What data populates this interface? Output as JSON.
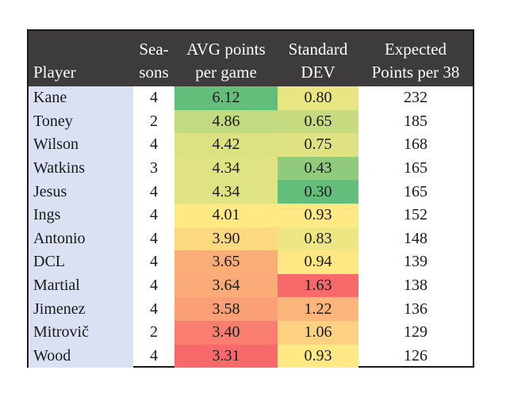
{
  "table": {
    "headers": {
      "player": "Player",
      "seasons": [
        "Sea-",
        "sons"
      ],
      "avg": [
        "AVG points",
        "per game"
      ],
      "std": [
        "Standard",
        "DEV"
      ],
      "expected": [
        "Expected",
        "Points per 38"
      ]
    },
    "rows": [
      {
        "player": "Kane",
        "seasons": "4",
        "avg": "6.12",
        "std": "0.80",
        "expected": "232",
        "avg_color": "#63be7b",
        "std_color": "#e9e583"
      },
      {
        "player": "Toney",
        "seasons": "2",
        "avg": "4.86",
        "std": "0.65",
        "expected": "185",
        "avg_color": "#c2da80",
        "std_color": "#c6da80"
      },
      {
        "player": "Wilson",
        "seasons": "4",
        "avg": "4.42",
        "std": "0.75",
        "expected": "168",
        "avg_color": "#dce281",
        "std_color": "#dee282"
      },
      {
        "player": "Watkins",
        "seasons": "3",
        "avg": "4.34",
        "std": "0.43",
        "expected": "165",
        "avg_color": "#e0e383",
        "std_color": "#8fca7d"
      },
      {
        "player": "Jesus",
        "seasons": "4",
        "avg": "4.34",
        "std": "0.30",
        "expected": "165",
        "avg_color": "#e0e383",
        "std_color": "#63be7b"
      },
      {
        "player": "Ings",
        "seasons": "4",
        "avg": "4.01",
        "std": "0.93",
        "expected": "152",
        "avg_color": "#fee983",
        "std_color": "#ffe984"
      },
      {
        "player": "Antonio",
        "seasons": "4",
        "avg": "3.90",
        "std": "0.83",
        "expected": "148",
        "avg_color": "#fdd981",
        "std_color": "#eee683"
      },
      {
        "player": "DCL",
        "seasons": "4",
        "avg": "3.65",
        "std": "0.94",
        "expected": "139",
        "avg_color": "#fbad78",
        "std_color": "#ffe784"
      },
      {
        "player": "Martial",
        "seasons": "4",
        "avg": "3.64",
        "std": "1.63",
        "expected": "138",
        "avg_color": "#fbab78",
        "std_color": "#f8696b"
      },
      {
        "player": "Jimenez",
        "seasons": "4",
        "avg": "3.58",
        "std": "1.22",
        "expected": "136",
        "avg_color": "#fb9f76",
        "std_color": "#fcb57a"
      },
      {
        "player": "Mitrovič",
        "seasons": "2",
        "avg": "3.40",
        "std": "1.06",
        "expected": "129",
        "avg_color": "#f97e70",
        "std_color": "#fdd17f"
      },
      {
        "player": "Wood",
        "seasons": "4",
        "avg": "3.31",
        "std": "0.93",
        "expected": "126",
        "avg_color": "#f8696b",
        "std_color": "#ffe984"
      }
    ]
  }
}
